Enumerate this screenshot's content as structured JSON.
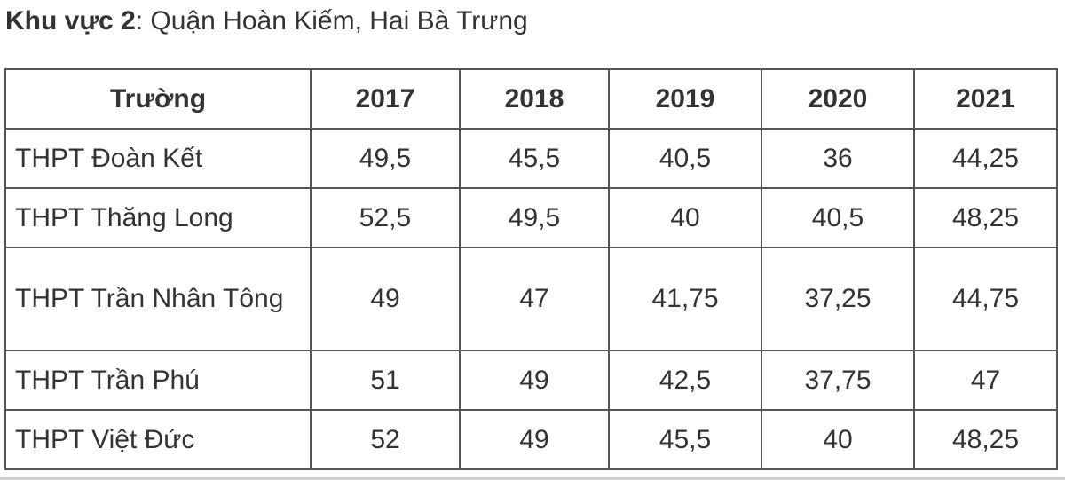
{
  "heading": {
    "lead": "Khu vực 2",
    "rest": ": Quận Hoàn Kiếm, Hai Bà Trưng"
  },
  "table": {
    "headers": [
      "Trường",
      "2017",
      "2018",
      "2019",
      "2020",
      "2021"
    ],
    "rows": [
      {
        "school": "THPT Đoàn Kết",
        "values": [
          "49,5",
          "45,5",
          "40,5",
          "36",
          "44,25"
        ]
      },
      {
        "school": "THPT Thăng Long",
        "values": [
          "52,5",
          "49,5",
          "40",
          "40,5",
          "48,25"
        ]
      },
      {
        "school": "THPT Trần Nhân Tông",
        "values": [
          "49",
          "47",
          "41,75",
          "37,25",
          "44,75"
        ]
      },
      {
        "school": "THPT Trần Phú",
        "values": [
          "51",
          "49",
          "42,5",
          "37,75",
          "47"
        ]
      },
      {
        "school": "THPT Việt Đức",
        "values": [
          "52",
          "49",
          "45,5",
          "40",
          "48,25"
        ]
      }
    ]
  }
}
